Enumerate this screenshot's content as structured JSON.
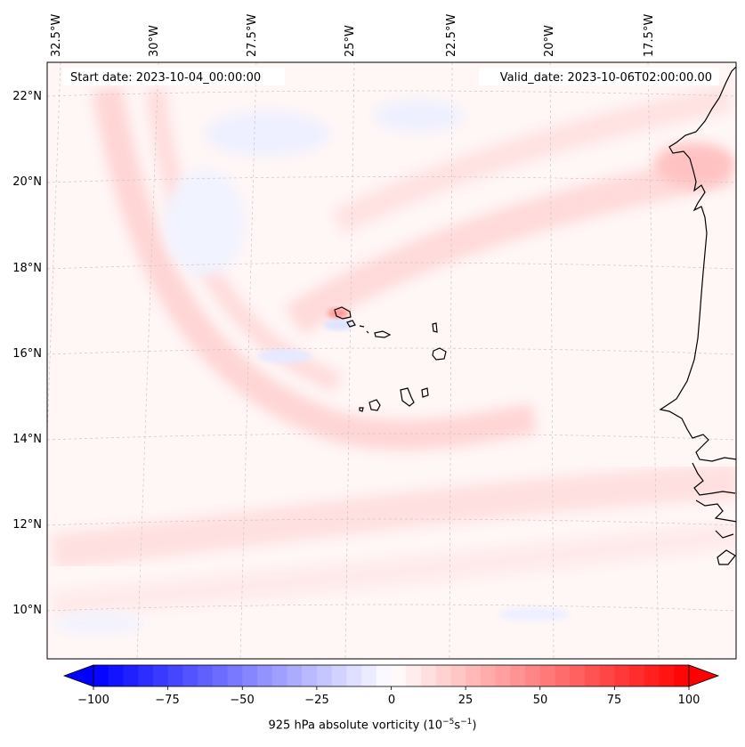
{
  "map": {
    "start_date": "Start date: 2023-10-04_00:00:00",
    "valid_date": "Valid_date: 2023-10-06T02:00:00.00",
    "longitude_labels": [
      "32.5°W",
      "30°W",
      "27.5°W",
      "25°W",
      "22.5°W",
      "20°W",
      "17.5°W"
    ],
    "latitude_labels": [
      "22°N",
      "20°N",
      "18°N",
      "16°N",
      "14°N",
      "12°N",
      "10°N"
    ],
    "extent": {
      "lon_min": -32.7,
      "lon_max": -15.2,
      "lat_min": 8.9,
      "lat_max": 22.8
    },
    "colors": {
      "positive": "#ff0000",
      "negative": "#0000ff",
      "neutral": "#ffffff",
      "coastline": "#000000",
      "grid": "#bbbbbb"
    }
  },
  "colorbar": {
    "label_prefix": "925 hPa absolute vorticity (10",
    "label_exp1": "−5",
    "label_mid": "s",
    "label_exp2": "−1",
    "label_suffix": ")",
    "ticks": [
      "−100",
      "−75",
      "−50",
      "−25",
      "0",
      "25",
      "50",
      "75",
      "100"
    ],
    "range": [
      -100,
      100
    ],
    "colormap": "bwr"
  }
}
